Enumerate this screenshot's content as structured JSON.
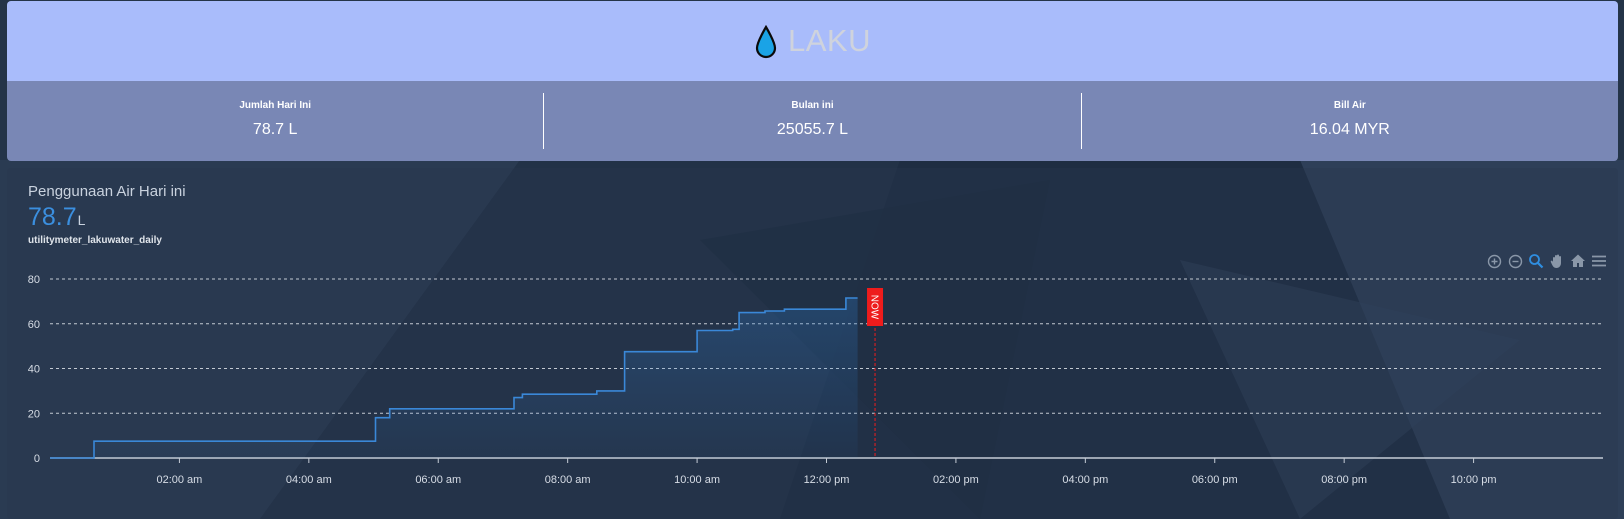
{
  "header": {
    "title": "LAKU",
    "icon": "water-drop-icon",
    "colors": {
      "title_bg": "#a9bcfb",
      "stats_bg": "#7987b5",
      "drop": "#1aa3e6"
    }
  },
  "stats": [
    {
      "label": "Jumlah Hari Ini",
      "value": "78.7 L"
    },
    {
      "label": "Bulan ini",
      "value": "25055.7 L"
    },
    {
      "label": "Bill Air",
      "value": "16.04 MYR"
    }
  ],
  "chart_card": {
    "title": "Penggunaan Air Hari ini",
    "state_value": "78.7",
    "state_unit": "L",
    "entity": "utilitymeter_lakuwater_daily",
    "now_label": "NOW",
    "toolbar": [
      "zoom-in-icon",
      "zoom-out-icon",
      "selection-zoom-icon",
      "pan-hand-icon",
      "reset-home-icon",
      "menu-icon"
    ],
    "colors": {
      "line": "#3a88d8",
      "now_marker": "#ee1c1c",
      "grid": "#dfe4ea"
    }
  },
  "chart_data": {
    "type": "area",
    "xlabel": "",
    "ylabel": "",
    "ylim": [
      0,
      80
    ],
    "xlim_hours": [
      0,
      24
    ],
    "yticks": [
      0,
      20,
      40,
      60,
      80
    ],
    "xticks": [
      "02:00 am",
      "04:00 am",
      "06:00 am",
      "08:00 am",
      "10:00 am",
      "12:00 pm",
      "02:00 pm",
      "04:00 pm",
      "06:00 pm",
      "08:00 pm",
      "10:00 pm"
    ],
    "xtick_hours": [
      2,
      4,
      6,
      8,
      10,
      12,
      14,
      16,
      18,
      20,
      22
    ],
    "grid": true,
    "now_hour": 12.75,
    "series": [
      {
        "hours": [
          0,
          0.68,
          0.68,
          5.03,
          5.03,
          5.25,
          5.25,
          7.17,
          7.17,
          7.3,
          7.3,
          8.45,
          8.45,
          8.88,
          8.88,
          10.0,
          10.0,
          10.55,
          10.55,
          10.65,
          10.65,
          11.05,
          11.05,
          11.35,
          11.35,
          12.3,
          12.3,
          12.48
        ],
        "values": [
          0,
          0,
          7.5,
          7.5,
          18,
          18,
          22,
          22,
          27,
          27,
          28.5,
          28.5,
          30,
          30,
          47.5,
          47.5,
          57,
          57,
          57.5,
          57.5,
          65,
          65,
          65.7,
          65.7,
          66.5,
          66.5,
          71.5,
          71.5
        ]
      }
    ]
  }
}
